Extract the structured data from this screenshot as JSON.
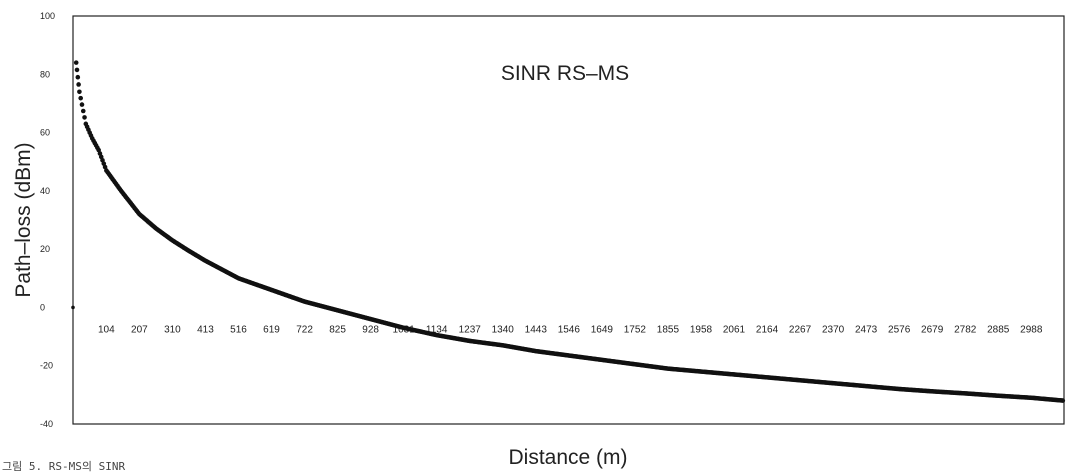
{
  "caption": "그림 5. RS-MS의 SINR",
  "chart_data": {
    "type": "scatter",
    "title": "SINR RS–MS",
    "xlabel": "Distance (m)",
    "ylabel": "Path–loss (dBm)",
    "ylim": [
      -40,
      100
    ],
    "xlim": [
      0,
      3090
    ],
    "y_ticks": [
      "100",
      "80",
      "60",
      "40",
      "20",
      "0",
      "-20",
      "-40"
    ],
    "x_ticks": [
      "104",
      "207",
      "310",
      "413",
      "516",
      "619",
      "722",
      "825",
      "928",
      "1031",
      "1134",
      "1237",
      "1340",
      "1443",
      "1546",
      "1649",
      "1752",
      "1855",
      "1958",
      "2061",
      "2164",
      "2267",
      "2370",
      "2473",
      "2576",
      "2679",
      "2782",
      "2885",
      "2988"
    ],
    "x_tick_values": [
      104,
      207,
      310,
      413,
      516,
      619,
      722,
      825,
      928,
      1031,
      1134,
      1237,
      1340,
      1443,
      1546,
      1649,
      1752,
      1855,
      1958,
      2061,
      2164,
      2267,
      2370,
      2473,
      2576,
      2679,
      2782,
      2885,
      2988
    ],
    "grid": false,
    "legend": "none",
    "marker_color": "#111111",
    "series": [
      {
        "x": [
          0,
          10,
          20,
          40,
          60,
          80,
          104,
          150,
          207,
          260,
          310,
          360,
          413,
          516,
          619,
          722,
          825,
          928,
          1031,
          1134,
          1237,
          1340,
          1443,
          1546,
          1649,
          1752,
          1855,
          1958,
          2061,
          2164,
          2267,
          2370,
          2473,
          2576,
          2679,
          2782,
          2885,
          2988,
          3090
        ],
        "y": [
          0,
          84,
          74,
          63,
          58,
          54,
          47,
          40,
          32,
          27,
          23,
          19.5,
          16,
          10,
          6,
          2,
          -1,
          -4,
          -7,
          -9.5,
          -11.5,
          -13,
          -15,
          -16.5,
          -18,
          -19.5,
          -21,
          -22,
          -23,
          -24,
          -25,
          -26,
          -27,
          -28,
          -28.8,
          -29.5,
          -30.3,
          -31,
          -32
        ]
      }
    ]
  }
}
